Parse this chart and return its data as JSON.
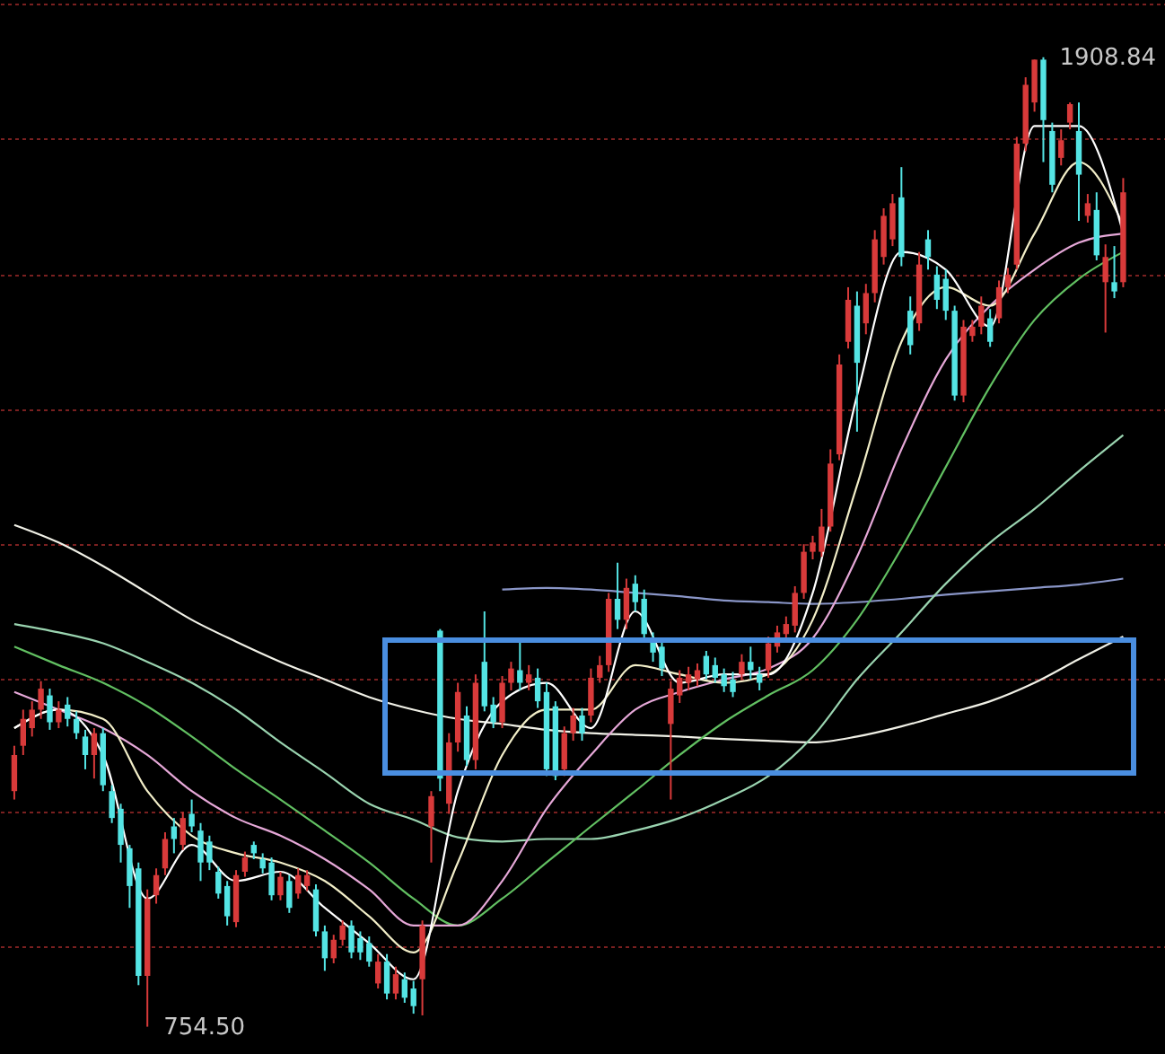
{
  "chart_data": {
    "type": "candlestick",
    "grid": "y",
    "ylim": [
      722,
      1977
    ],
    "yticks": [
      {
        "value": 851,
        "label": null
      },
      {
        "value": 1011,
        "label": null
      },
      {
        "value": 1169,
        "label": null
      },
      {
        "value": 1330,
        "label": null
      },
      {
        "value": 1490,
        "label": null
      },
      {
        "value": 1650,
        "label": null
      },
      {
        "value": 1813,
        "label": null
      },
      {
        "value": 1973,
        "label": null
      }
    ],
    "categories": [
      null,
      null,
      null,
      null,
      null,
      null,
      null,
      null,
      null,
      null,
      null,
      null,
      null,
      null,
      null,
      null,
      null,
      null,
      null,
      null,
      null,
      null,
      null,
      null,
      null,
      null,
      null,
      null,
      null,
      null,
      null,
      null,
      null,
      null,
      null,
      null,
      null,
      null,
      null,
      null,
      null,
      null,
      null,
      null,
      null,
      null,
      null,
      null,
      null,
      null,
      null,
      null,
      null,
      null,
      null,
      null,
      null,
      null,
      null,
      null,
      null,
      null,
      null,
      null,
      null,
      null,
      null,
      null,
      null,
      null,
      null,
      null,
      null,
      null,
      null,
      null,
      null,
      null,
      null,
      null,
      null,
      null,
      null,
      null,
      null,
      null,
      null,
      null,
      null,
      null,
      null,
      null,
      null,
      null,
      null,
      null,
      null,
      null,
      null,
      null,
      null,
      null,
      null,
      null,
      null,
      null,
      null,
      null,
      null,
      null,
      null,
      null,
      null,
      null,
      null,
      null,
      null,
      null,
      null,
      null,
      null,
      null,
      null,
      null,
      null,
      null
    ],
    "ohlc": [
      [
        1035,
        1089,
        1025,
        1078
      ],
      [
        1089,
        1132,
        1078,
        1121
      ],
      [
        1110,
        1142,
        1100,
        1132
      ],
      [
        1132,
        1166,
        1121,
        1157
      ],
      [
        1149,
        1157,
        1108,
        1117
      ],
      [
        1117,
        1142,
        1110,
        1132
      ],
      [
        1138,
        1147,
        1112,
        1121
      ],
      [
        1121,
        1130,
        1097,
        1104
      ],
      [
        1100,
        1108,
        1061,
        1078
      ],
      [
        1078,
        1110,
        1050,
        1104
      ],
      [
        1104,
        1110,
        1035,
        1042
      ],
      [
        1035,
        1042,
        997,
        1003
      ],
      [
        1014,
        1020,
        950,
        971
      ],
      [
        967,
        971,
        896,
        922
      ],
      [
        943,
        950,
        804,
        815
      ],
      [
        815,
        918,
        754.5,
        907
      ],
      [
        911,
        943,
        901,
        935
      ],
      [
        943,
        986,
        935,
        978
      ],
      [
        993,
        1003,
        961,
        978
      ],
      [
        971,
        1010,
        965,
        1003
      ],
      [
        1008,
        1025,
        986,
        993
      ],
      [
        988,
        997,
        928,
        950
      ],
      [
        975,
        982,
        941,
        950
      ],
      [
        939,
        945,
        907,
        913
      ],
      [
        922,
        928,
        875,
        886
      ],
      [
        879,
        941,
        873,
        935
      ],
      [
        939,
        963,
        933,
        956
      ],
      [
        971,
        975,
        954,
        961
      ],
      [
        954,
        961,
        937,
        943
      ],
      [
        950,
        956,
        905,
        911
      ],
      [
        911,
        939,
        905,
        933
      ],
      [
        928,
        935,
        890,
        896
      ],
      [
        913,
        943,
        907,
        935
      ],
      [
        922,
        941,
        916,
        935
      ],
      [
        918,
        924,
        862,
        868
      ],
      [
        868,
        875,
        821,
        836
      ],
      [
        836,
        864,
        830,
        858
      ],
      [
        858,
        881,
        851,
        875
      ],
      [
        875,
        881,
        836,
        843
      ],
      [
        860,
        868,
        834,
        843
      ],
      [
        854,
        862,
        826,
        832
      ],
      [
        806,
        841,
        800,
        832
      ],
      [
        832,
        841,
        787,
        794
      ],
      [
        794,
        826,
        787,
        817
      ],
      [
        811,
        819,
        783,
        789
      ],
      [
        800,
        809,
        770,
        779
      ],
      [
        811,
        881,
        768,
        875
      ],
      [
        993,
        1035,
        950,
        1029
      ],
      [
        1226,
        1228,
        1035,
        1050
      ],
      [
        1020,
        1104,
        1008,
        1093
      ],
      [
        1093,
        1164,
        1082,
        1153
      ],
      [
        1125,
        1136,
        1065,
        1072
      ],
      [
        1072,
        1174,
        1061,
        1164
      ],
      [
        1189,
        1249,
        1130,
        1136
      ],
      [
        1138,
        1147,
        1110,
        1117
      ],
      [
        1117,
        1172,
        1110,
        1164
      ],
      [
        1164,
        1189,
        1155,
        1181
      ],
      [
        1179,
        1213,
        1155,
        1164
      ],
      [
        1164,
        1185,
        1155,
        1174
      ],
      [
        1170,
        1181,
        1134,
        1142
      ],
      [
        1153,
        1164,
        1053,
        1061
      ],
      [
        1136,
        1142,
        1048,
        1053
      ],
      [
        1061,
        1112,
        1053,
        1104
      ],
      [
        1104,
        1134,
        1095,
        1125
      ],
      [
        1125,
        1134,
        1095,
        1104
      ],
      [
        1125,
        1181,
        1117,
        1170
      ],
      [
        1170,
        1196,
        1164,
        1185
      ],
      [
        1185,
        1271,
        1177,
        1264
      ],
      [
        1264,
        1307,
        1228,
        1239
      ],
      [
        1239,
        1288,
        1228,
        1277
      ],
      [
        1282,
        1292,
        1249,
        1260
      ],
      [
        1264,
        1275,
        1215,
        1222
      ],
      [
        1213,
        1224,
        1189,
        1200
      ],
      [
        1207,
        1217,
        1172,
        1181
      ],
      [
        1115,
        1166,
        1025,
        1157
      ],
      [
        1149,
        1179,
        1140,
        1170
      ],
      [
        1164,
        1183,
        1155,
        1174
      ],
      [
        1168,
        1187,
        1160,
        1179
      ],
      [
        1196,
        1202,
        1168,
        1174
      ],
      [
        1185,
        1194,
        1164,
        1170
      ],
      [
        1174,
        1181,
        1153,
        1160
      ],
      [
        1168,
        1177,
        1147,
        1153
      ],
      [
        1174,
        1198,
        1168,
        1189
      ],
      [
        1189,
        1207,
        1168,
        1179
      ],
      [
        1174,
        1183,
        1155,
        1164
      ],
      [
        1179,
        1219,
        1170,
        1211
      ],
      [
        1207,
        1232,
        1200,
        1224
      ],
      [
        1222,
        1243,
        1215,
        1234
      ],
      [
        1232,
        1279,
        1224,
        1271
      ],
      [
        1271,
        1329,
        1264,
        1320
      ],
      [
        1320,
        1339,
        1311,
        1331
      ],
      [
        1320,
        1371,
        1314,
        1350
      ],
      [
        1350,
        1442,
        1344,
        1425
      ],
      [
        1436,
        1555,
        1429,
        1543
      ],
      [
        1570,
        1635,
        1562,
        1620
      ],
      [
        1613,
        1630,
        1463,
        1545
      ],
      [
        1592,
        1639,
        1579,
        1628
      ],
      [
        1628,
        1703,
        1617,
        1692
      ],
      [
        1671,
        1729,
        1662,
        1720
      ],
      [
        1692,
        1746,
        1684,
        1735
      ],
      [
        1742,
        1778,
        1660,
        1671
      ],
      [
        1607,
        1624,
        1555,
        1566
      ],
      [
        1592,
        1677,
        1583,
        1662
      ],
      [
        1692,
        1703,
        1656,
        1671
      ],
      [
        1650,
        1660,
        1609,
        1620
      ],
      [
        1645,
        1656,
        1596,
        1607
      ],
      [
        1607,
        1613,
        1500,
        1506
      ],
      [
        1506,
        1596,
        1498,
        1588
      ],
      [
        1577,
        1596,
        1570,
        1588
      ],
      [
        1588,
        1624,
        1579,
        1613
      ],
      [
        1598,
        1609,
        1564,
        1570
      ],
      [
        1598,
        1643,
        1592,
        1635
      ],
      [
        1635,
        1658,
        1628,
        1650
      ],
      [
        1662,
        1814,
        1656,
        1806
      ],
      [
        1806,
        1885,
        1797,
        1876
      ],
      [
        1855,
        1906,
        1844,
        1906
      ],
      [
        1906,
        1908.84,
        1784,
        1834
      ],
      [
        1821,
        1831,
        1748,
        1757
      ],
      [
        1789,
        1823,
        1780,
        1810
      ],
      [
        1831,
        1855,
        1823,
        1853
      ],
      [
        1821,
        1855,
        1714,
        1769
      ],
      [
        1720,
        1746,
        1712,
        1735
      ],
      [
        1727,
        1748,
        1667,
        1673
      ],
      [
        1641,
        1686,
        1581,
        1671
      ],
      [
        1641,
        1684,
        1622,
        1630
      ],
      [
        1641,
        1765,
        1635,
        1748
      ]
    ],
    "series": [
      {
        "type": "line",
        "color": "#f0f0e6",
        "values": [
          1352,
          null,
          null,
          null,
          null,
          1331,
          null,
          null,
          null,
          null,
          1303,
          null,
          null,
          null,
          null,
          1271,
          null,
          null,
          null,
          null,
          1239,
          null,
          null,
          null,
          null,
          1213,
          null,
          null,
          null,
          null,
          1189,
          null,
          null,
          null,
          null,
          1168,
          null,
          null,
          null,
          null,
          1147,
          null,
          null,
          null,
          null,
          1132,
          null,
          null,
          null,
          null,
          1121,
          null,
          null,
          null,
          null,
          1115,
          null,
          null,
          null,
          null,
          1108,
          null,
          null,
          null,
          null,
          1104,
          null,
          null,
          null,
          null,
          1102,
          null,
          null,
          null,
          null,
          1100,
          null,
          null,
          null,
          null,
          1097,
          null,
          null,
          null,
          null,
          1095,
          null,
          null,
          null,
          null,
          1093,
          null,
          null,
          null,
          null,
          1100,
          null,
          null,
          null,
          null,
          1112,
          null,
          null,
          null,
          null,
          1127,
          null,
          null,
          null,
          null,
          1142,
          null,
          null,
          null,
          null,
          1164,
          null,
          null,
          null,
          null,
          1192,
          null,
          null,
          null,
          null,
          1219
        ]
      },
      {
        "type": "line",
        "color": "#8a96c8",
        "values": [
          null,
          null,
          null,
          null,
          null,
          null,
          null,
          null,
          null,
          null,
          null,
          null,
          null,
          null,
          null,
          null,
          null,
          null,
          null,
          null,
          null,
          null,
          null,
          null,
          null,
          null,
          null,
          null,
          null,
          null,
          null,
          null,
          null,
          null,
          null,
          null,
          null,
          null,
          null,
          null,
          null,
          null,
          null,
          null,
          null,
          null,
          null,
          null,
          null,
          null,
          null,
          null,
          null,
          null,
          null,
          1275,
          null,
          null,
          null,
          null,
          1277,
          null,
          null,
          null,
          null,
          1275,
          null,
          null,
          null,
          null,
          1271,
          null,
          null,
          null,
          null,
          1267,
          null,
          null,
          null,
          null,
          1262,
          null,
          null,
          null,
          null,
          1260,
          null,
          null,
          null,
          null,
          1258,
          null,
          null,
          null,
          null,
          1260,
          null,
          null,
          null,
          null,
          1264,
          null,
          null,
          null,
          null,
          1269,
          null,
          null,
          null,
          null,
          1273,
          null,
          null,
          null,
          null,
          1277,
          null,
          null,
          null,
          null,
          1281,
          null,
          null,
          null,
          null,
          1288
        ]
      },
      {
        "type": "line",
        "color": "#9ad4b0",
        "values": [
          1234,
          null,
          null,
          null,
          null,
          1224,
          null,
          null,
          null,
          null,
          1211,
          null,
          null,
          null,
          null,
          1189,
          null,
          null,
          null,
          null,
          1164,
          null,
          null,
          null,
          null,
          1132,
          null,
          null,
          null,
          null,
          1093,
          null,
          null,
          null,
          null,
          1057,
          null,
          null,
          null,
          null,
          1020,
          null,
          null,
          null,
          null,
          1001,
          null,
          null,
          null,
          null,
          980,
          null,
          null,
          null,
          null,
          975,
          null,
          null,
          null,
          null,
          978,
          null,
          null,
          null,
          null,
          978,
          null,
          null,
          null,
          null,
          988,
          null,
          null,
          null,
          null,
          1003,
          null,
          null,
          null,
          null,
          1025,
          null,
          null,
          null,
          null,
          1053,
          null,
          null,
          null,
          null,
          1100,
          null,
          null,
          null,
          null,
          1168,
          null,
          null,
          null,
          null,
          1224,
          null,
          null,
          null,
          null,
          1282,
          null,
          null,
          null,
          null,
          1331,
          null,
          null,
          null,
          null,
          1371,
          null,
          null,
          null,
          null,
          1416,
          null,
          null,
          null,
          null,
          1459
        ]
      },
      {
        "type": "line",
        "color": "#62c062",
        "values": [
          1207,
          null,
          null,
          null,
          null,
          1185,
          null,
          null,
          null,
          null,
          1164,
          null,
          null,
          null,
          null,
          1136,
          null,
          null,
          null,
          null,
          1100,
          null,
          null,
          null,
          null,
          1061,
          null,
          null,
          null,
          null,
          1025,
          null,
          null,
          null,
          null,
          988,
          null,
          null,
          null,
          null,
          950,
          null,
          null,
          null,
          null,
          907,
          null,
          null,
          null,
          null,
          875,
          null,
          null,
          null,
          null,
          907,
          null,
          null,
          null,
          null,
          950,
          null,
          null,
          null,
          null,
          993,
          null,
          null,
          null,
          null,
          1035,
          null,
          null,
          null,
          null,
          1078,
          null,
          null,
          null,
          null,
          1117,
          null,
          null,
          null,
          null,
          1149,
          null,
          null,
          null,
          null,
          1179,
          null,
          null,
          null,
          null,
          1239,
          null,
          null,
          null,
          null,
          1324,
          null,
          null,
          null,
          null,
          1421,
          null,
          null,
          null,
          null,
          1517,
          null,
          null,
          null,
          null,
          1596,
          null,
          null,
          null,
          null,
          1645,
          null,
          null,
          null,
          null,
          1677
        ]
      },
      {
        "type": "line",
        "color": "#e6a8d8",
        "values": [
          1153,
          null,
          null,
          null,
          null,
          1132,
          null,
          null,
          null,
          null,
          1110,
          null,
          null,
          null,
          null,
          1078,
          null,
          null,
          null,
          null,
          1035,
          null,
          null,
          null,
          null,
          1003,
          null,
          null,
          null,
          null,
          982,
          null,
          null,
          null,
          null,
          954,
          null,
          null,
          null,
          null,
          918,
          null,
          null,
          null,
          null,
          875,
          null,
          null,
          null,
          null,
          875,
          null,
          null,
          null,
          null,
          928,
          null,
          null,
          null,
          null,
          1014,
          null,
          null,
          null,
          null,
          1078,
          null,
          null,
          null,
          null,
          1132,
          null,
          null,
          null,
          null,
          1153,
          null,
          null,
          null,
          null,
          1168,
          null,
          null,
          null,
          null,
          1181,
          null,
          null,
          null,
          null,
          1217,
          null,
          null,
          null,
          null,
          1314,
          null,
          null,
          null,
          null,
          1442,
          null,
          null,
          null,
          null,
          1549,
          null,
          null,
          null,
          null,
          1613,
          null,
          null,
          null,
          null,
          1656,
          null,
          null,
          null,
          null,
          1688,
          null,
          null,
          null,
          null,
          1699
        ]
      },
      {
        "type": "line",
        "color": "#f2eec8",
        "values": [
          1110,
          null,
          null,
          null,
          null,
          1132,
          null,
          null,
          null,
          null,
          1121,
          null,
          null,
          null,
          null,
          1035,
          null,
          null,
          null,
          null,
          982,
          null,
          null,
          null,
          null,
          961,
          null,
          null,
          null,
          null,
          950,
          null,
          null,
          null,
          null,
          928,
          null,
          null,
          null,
          null,
          886,
          null,
          null,
          null,
          null,
          843,
          null,
          null,
          null,
          null,
          950,
          null,
          null,
          null,
          null,
          1078,
          null,
          null,
          null,
          null,
          1132,
          null,
          null,
          null,
          null,
          1132,
          null,
          null,
          null,
          null,
          1185,
          null,
          null,
          null,
          null,
          1174,
          null,
          null,
          null,
          null,
          1164,
          null,
          null,
          null,
          null,
          1174,
          null,
          null,
          null,
          null,
          1239,
          null,
          null,
          null,
          null,
          1399,
          null,
          null,
          null,
          null,
          1570,
          null,
          null,
          null,
          null,
          1635,
          null,
          null,
          null,
          null,
          1613,
          null,
          null,
          null,
          null,
          1699,
          null,
          null,
          null,
          null,
          1784,
          null,
          null,
          null,
          null,
          1709
        ]
      },
      {
        "type": "line",
        "color": "#ffffff",
        "values": [
          1110,
          null,
          null,
          null,
          null,
          1132,
          null,
          null,
          null,
          null,
          1078,
          null,
          null,
          null,
          null,
          907,
          null,
          null,
          null,
          null,
          971,
          null,
          null,
          null,
          null,
          928,
          null,
          null,
          null,
          null,
          939,
          null,
          null,
          null,
          null,
          896,
          null,
          null,
          null,
          null,
          854,
          null,
          null,
          null,
          null,
          811,
          null,
          null,
          null,
          null,
          1035,
          null,
          null,
          null,
          null,
          1142,
          null,
          null,
          null,
          null,
          1164,
          null,
          null,
          null,
          null,
          1110,
          null,
          null,
          null,
          null,
          1249,
          null,
          null,
          null,
          null,
          1164,
          null,
          null,
          null,
          null,
          1174,
          null,
          null,
          null,
          null,
          1174,
          null,
          null,
          null,
          null,
          1271,
          null,
          null,
          null,
          null,
          1506,
          null,
          null,
          null,
          null,
          1677,
          null,
          null,
          null,
          null,
          1656,
          null,
          null,
          null,
          null,
          1588,
          null,
          null,
          null,
          null,
          1827,
          null,
          null,
          null,
          null,
          1827,
          null,
          null,
          null,
          null,
          1699
        ]
      }
    ],
    "annotations": [
      "1908.84",
      "754.50"
    ]
  }
}
